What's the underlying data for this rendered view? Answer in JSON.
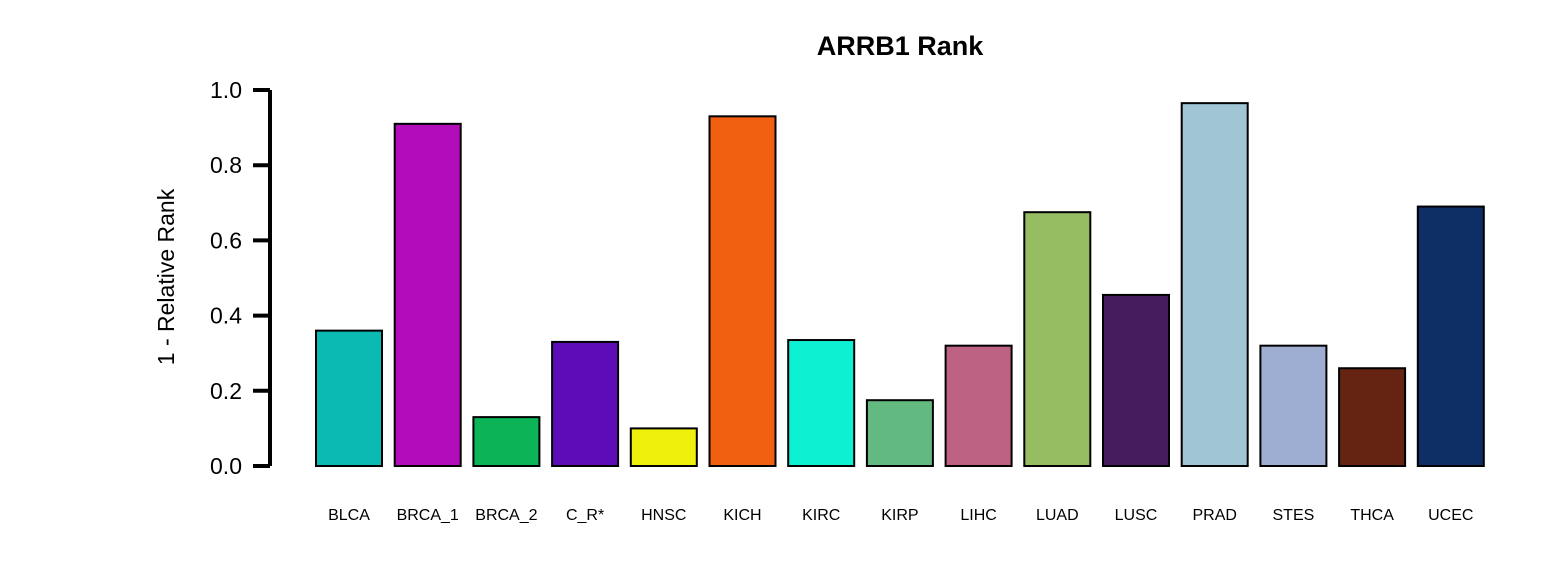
{
  "chart_data": {
    "type": "bar",
    "title": "ARRB1 Rank",
    "xlabel": "",
    "ylabel": "1 - Relative Rank",
    "ylim": [
      0,
      1.0
    ],
    "yticks": [
      0.0,
      0.2,
      0.4,
      0.6,
      0.8,
      1.0
    ],
    "ytick_labels": [
      "0.0",
      "0.2",
      "0.4",
      "0.6",
      "0.8",
      "1.0"
    ],
    "grid": false,
    "legend": "none",
    "categories": [
      "BLCA",
      "BRCA_1",
      "BRCA_2",
      "C_R*",
      "HNSC",
      "KICH",
      "KIRC",
      "KIRP",
      "LIHC",
      "LUAD",
      "LUSC",
      "PRAD",
      "STES",
      "THCA",
      "UCEC"
    ],
    "values": [
      0.36,
      0.91,
      0.13,
      0.33,
      0.1,
      0.93,
      0.335,
      0.175,
      0.32,
      0.675,
      0.455,
      0.965,
      0.32,
      0.26,
      0.69
    ],
    "colors": [
      "#0BBAB3",
      "#B30CB9",
      "#0BB557",
      "#5E0CB8",
      "#EEF00B",
      "#F06010",
      "#0EF0D2",
      "#62BA80",
      "#BD6282",
      "#97BD62",
      "#471C5E",
      "#A0C5D4",
      "#9EADD2",
      "#652411",
      "#0E2F66"
    ]
  }
}
